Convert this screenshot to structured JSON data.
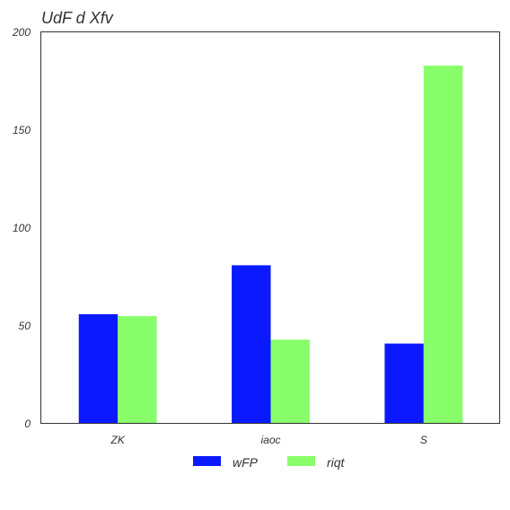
{
  "chart_data": {
    "type": "bar",
    "title": "UdF  d Xfv",
    "xlabel": "",
    "ylabel": "",
    "categories": [
      "ZK",
      "iaoc",
      "S"
    ],
    "series": [
      {
        "name": "wFP",
        "color": "#0a19ff",
        "values": [
          56,
          81,
          41
        ]
      },
      {
        "name": "riqt",
        "color": "#88ff6a",
        "values": [
          55,
          43,
          183
        ]
      }
    ],
    "ylim": [
      0,
      200
    ],
    "yticks": [
      0,
      50,
      100,
      150,
      200
    ],
    "grid": false,
    "legend": "bottom-center"
  }
}
